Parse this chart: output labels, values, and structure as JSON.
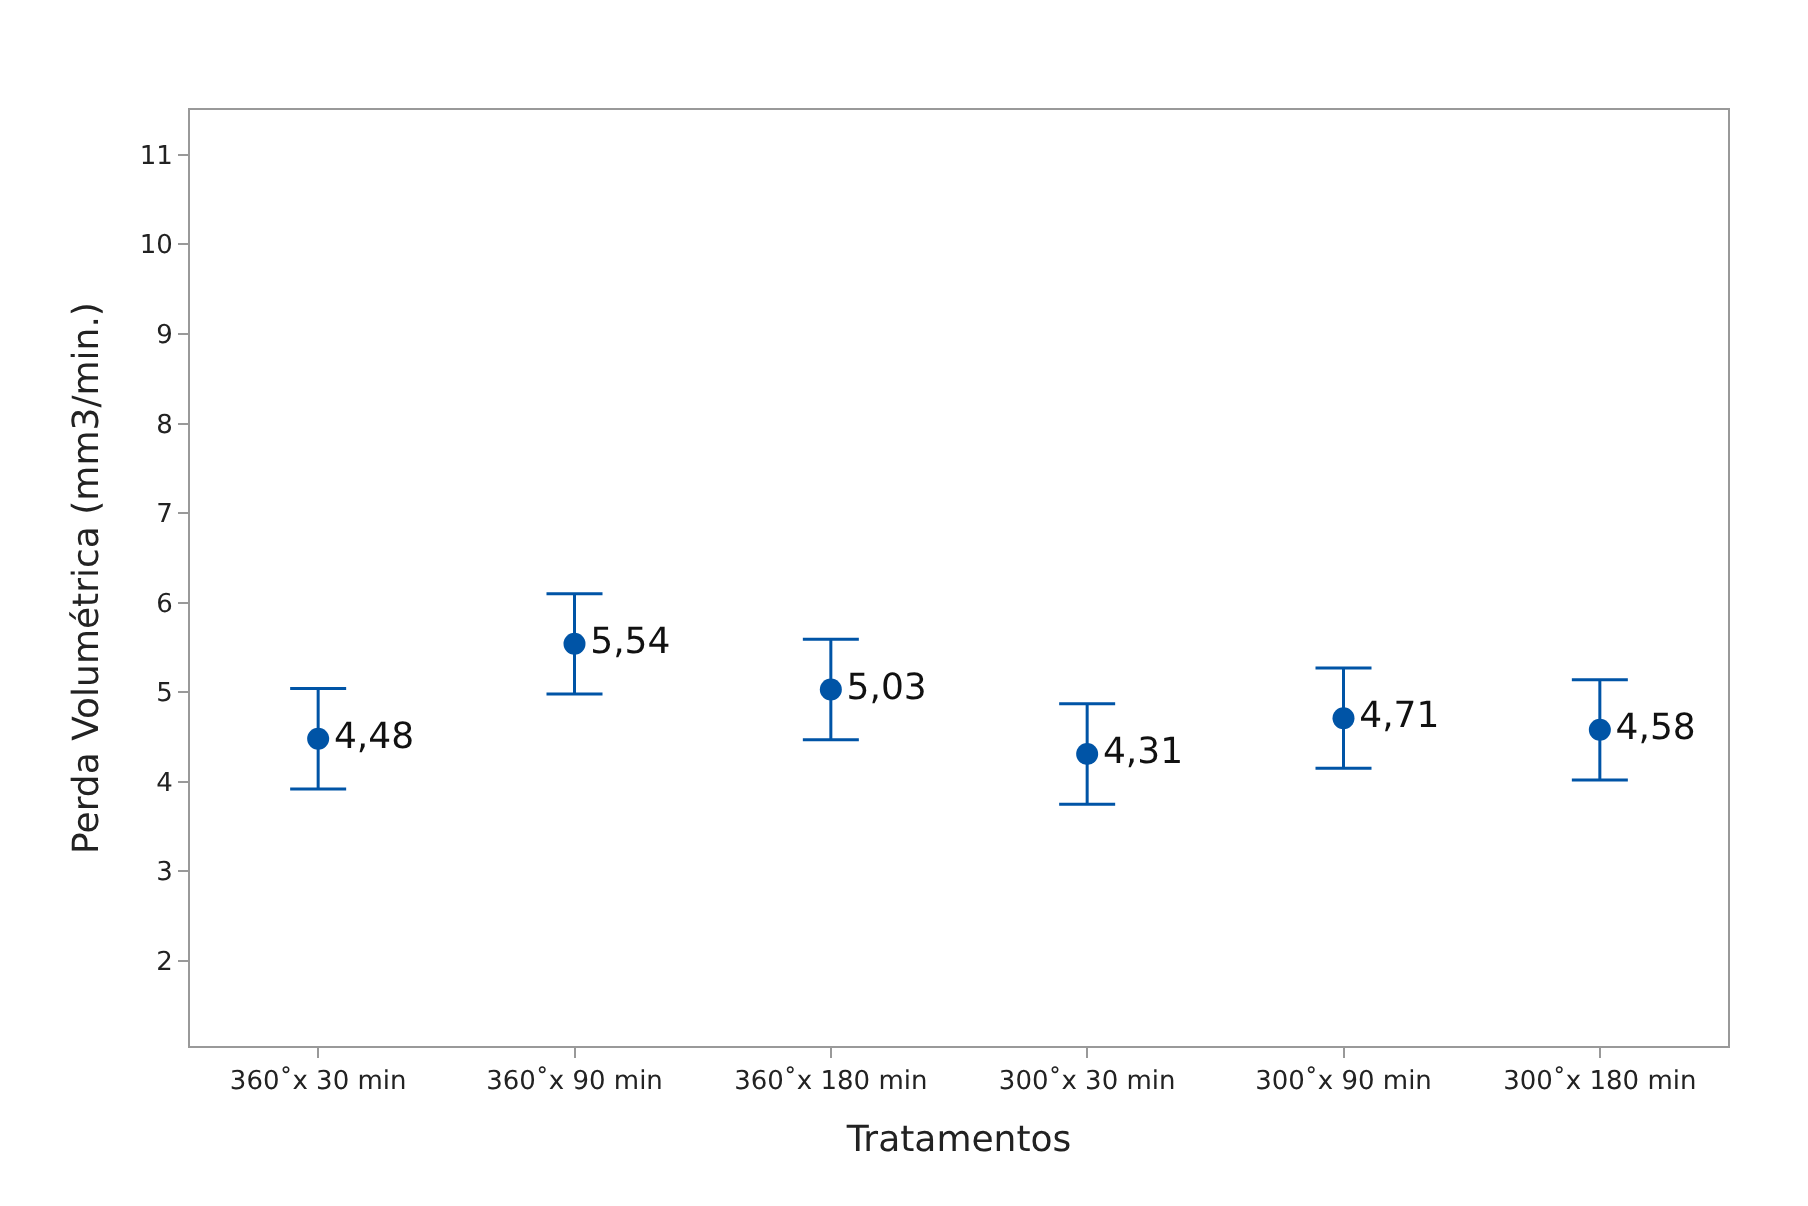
{
  "chart_data": {
    "type": "scatter",
    "xlabel": "Tratamentos",
    "ylabel": "Perda Volumétrica (mm3/min.)",
    "categories": [
      "360˚x 30 min",
      "360˚x 90 min",
      "360˚x 180 min",
      "300˚x 30 min",
      "300˚x 90 min",
      "300˚x 180 min"
    ],
    "values": [
      4.48,
      5.54,
      5.03,
      4.31,
      4.71,
      4.58
    ],
    "errors": [
      0.56,
      0.56,
      0.56,
      0.56,
      0.56,
      0.56
    ],
    "value_labels": [
      "4,48",
      "5,54",
      "5,03",
      "4,31",
      "4,71",
      "4,58"
    ],
    "color": "#0054a6",
    "marker": "circle",
    "ylim": [
      1.05,
      11.5
    ],
    "yticks": [
      2,
      3,
      4,
      5,
      6,
      7,
      8,
      9,
      10,
      11
    ],
    "legend": false
  }
}
